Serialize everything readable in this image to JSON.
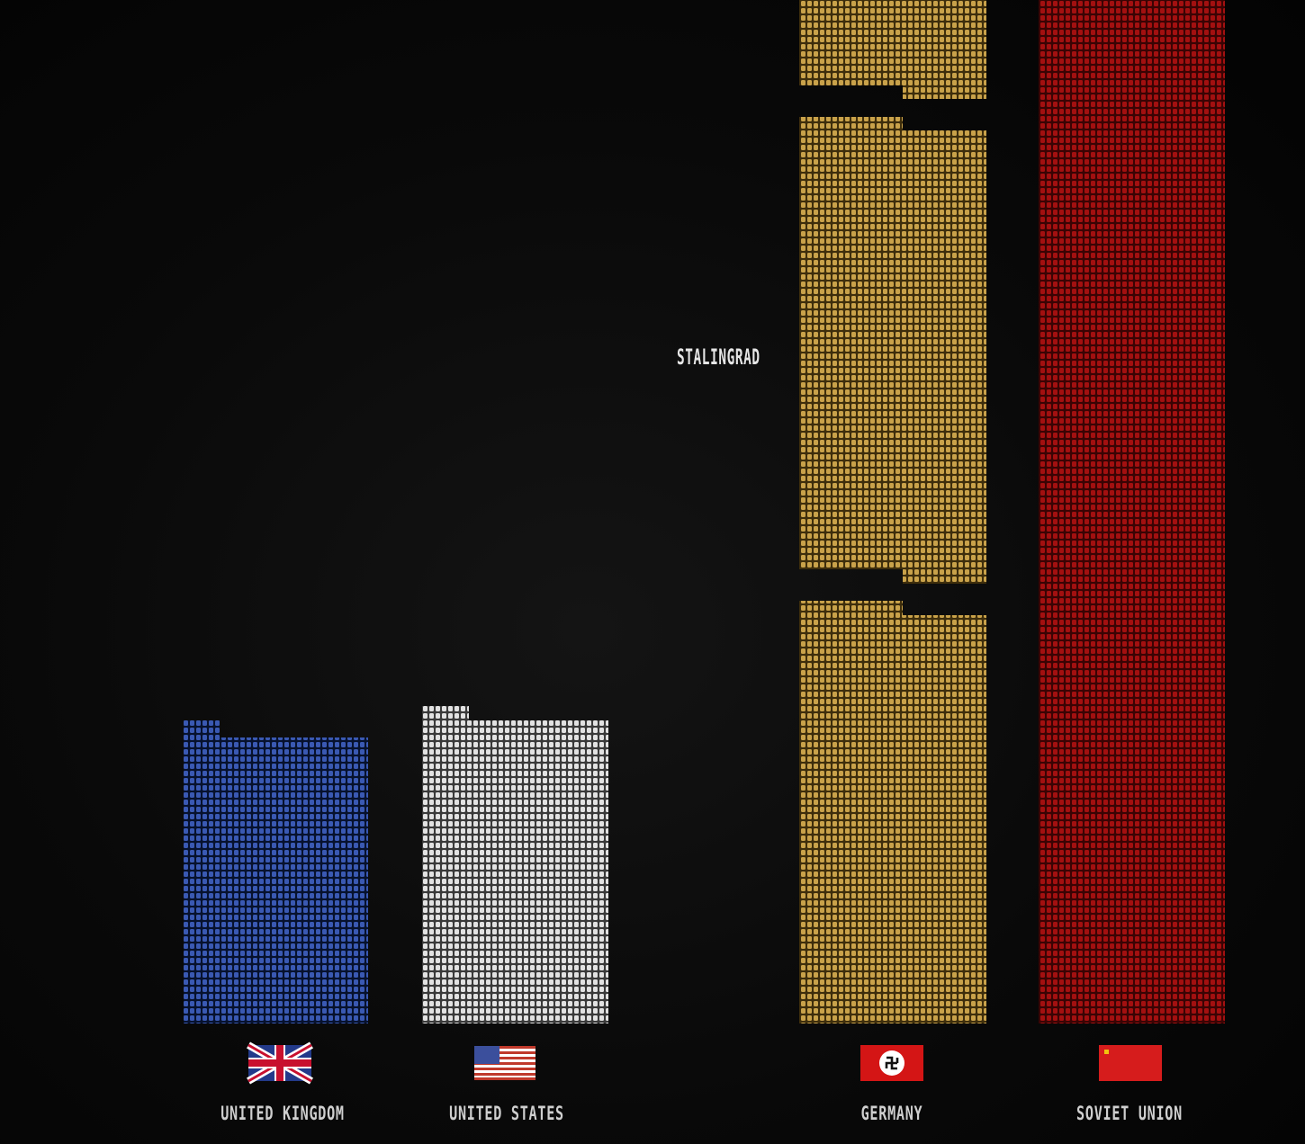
{
  "chart_data": {
    "type": "bar",
    "title": "",
    "xlabel": "",
    "ylabel": "",
    "categories": [
      "UNITED KINGDOM",
      "UNITED STATES",
      "GERMANY",
      "SOVIET UNION"
    ],
    "values": [
      450,
      420,
      5300,
      23000
    ],
    "colors": [
      "#3a59b3",
      "#e2e2e2",
      "#c9a24a",
      "#b01414"
    ],
    "flags": [
      "uk-flag-icon",
      "us-flag-icon",
      "germany-flag-icon",
      "soviet-flag-icon"
    ],
    "annotations": [
      {
        "text": "STALINGRAD",
        "category": "GERMANY"
      }
    ],
    "grid": false,
    "legend": "none"
  }
}
